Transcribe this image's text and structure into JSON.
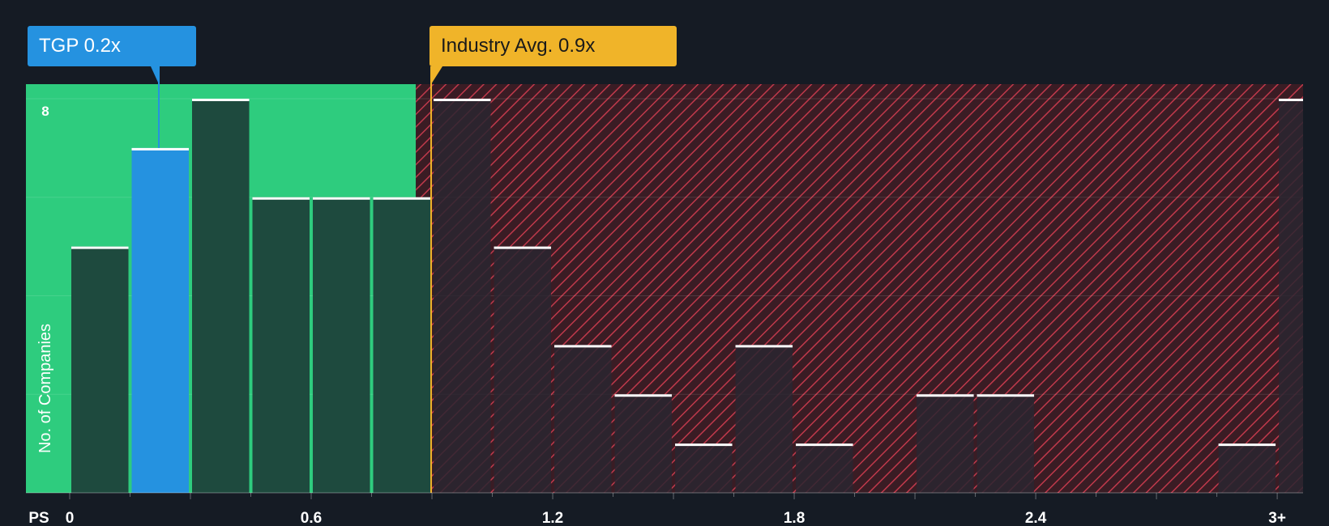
{
  "colors": {
    "background": "#151b24",
    "undervalued_zone": "#2ecc7e",
    "overvalued_zone": "#3a1c24",
    "hatch": "#c0394b",
    "company_bar": "#2592e0",
    "other_bar_in_green": "#1e4a3e",
    "other_bar_in_red": "#2a2630",
    "bar_cap": "#ffffff",
    "industry_line": "#f0b429",
    "company_callout": "#2592e0",
    "industry_callout": "#f0b429"
  },
  "company_callout": {
    "ticker": "TGP",
    "value": "0.2x",
    "label": "TGP 0.2x"
  },
  "industry_callout": {
    "label": "Industry Avg. 0.9x",
    "value": 0.9
  },
  "chart_data": {
    "type": "bar",
    "title": "",
    "xlabel": "PS",
    "ylabel": "No. of Companies",
    "x_ticks": [
      "0",
      "0.6",
      "1.2",
      "1.8",
      "2.4",
      "3+"
    ],
    "x_tick_values": [
      0,
      0.6,
      1.2,
      1.8,
      2.4,
      3.0
    ],
    "y_ticks": [
      "8"
    ],
    "ylim": [
      0,
      8
    ],
    "xlim": [
      -0.1,
      3.08
    ],
    "bin_width": 0.15,
    "bins": [
      {
        "start": 0.0,
        "count": 5
      },
      {
        "start": 0.15,
        "count": 7,
        "highlight": true
      },
      {
        "start": 0.3,
        "count": 8
      },
      {
        "start": 0.45,
        "count": 6
      },
      {
        "start": 0.6,
        "count": 6
      },
      {
        "start": 0.75,
        "count": 6
      },
      {
        "start": 0.9,
        "count": 8
      },
      {
        "start": 1.05,
        "count": 5
      },
      {
        "start": 1.2,
        "count": 3
      },
      {
        "start": 1.35,
        "count": 2
      },
      {
        "start": 1.5,
        "count": 1
      },
      {
        "start": 1.65,
        "count": 3
      },
      {
        "start": 1.8,
        "count": 1
      },
      {
        "start": 1.95,
        "count": 0
      },
      {
        "start": 2.1,
        "count": 2
      },
      {
        "start": 2.25,
        "count": 2
      },
      {
        "start": 2.4,
        "count": 0
      },
      {
        "start": 2.55,
        "count": 0
      },
      {
        "start": 2.7,
        "count": 0
      },
      {
        "start": 2.85,
        "count": 1
      },
      {
        "start": 3.0,
        "count": 8
      }
    ],
    "company_value": 0.2,
    "industry_avg": 0.9,
    "fair_zone_end": 0.86,
    "grid": true
  }
}
